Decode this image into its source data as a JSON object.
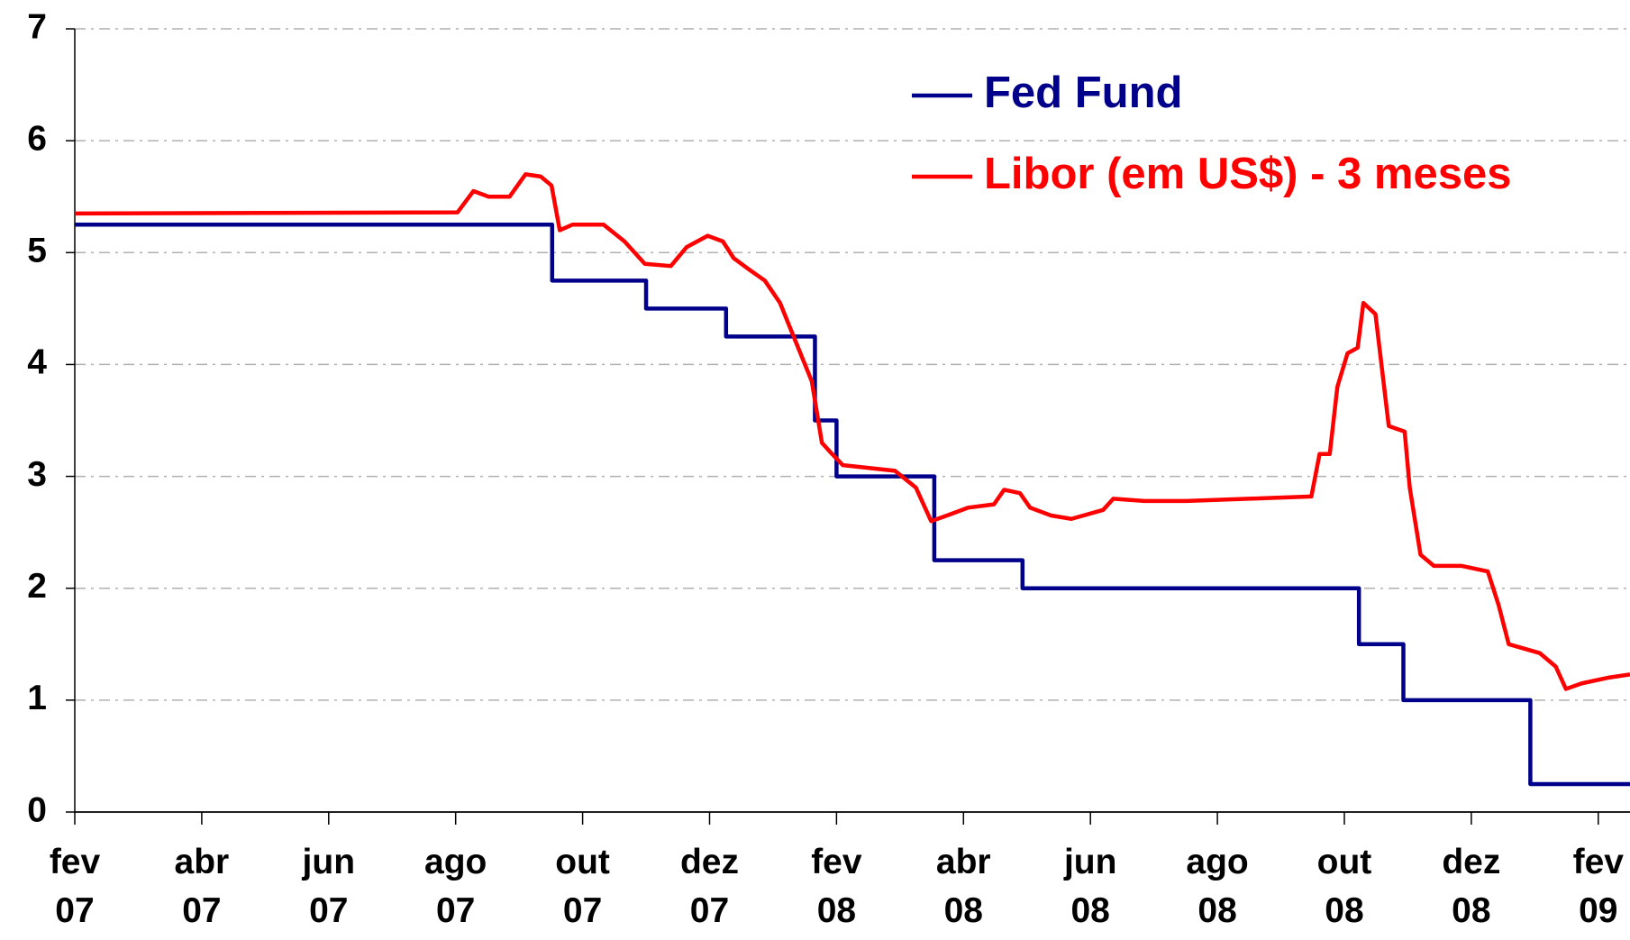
{
  "chart_data": {
    "type": "line",
    "xlim": [
      0,
      24.5
    ],
    "xticks": [
      {
        "value": 0,
        "label": "fev 07"
      },
      {
        "value": 2,
        "label": "abr 07"
      },
      {
        "value": 4,
        "label": "jun 07"
      },
      {
        "value": 6,
        "label": "ago 07"
      },
      {
        "value": 8,
        "label": "out 07"
      },
      {
        "value": 10,
        "label": "dez 07"
      },
      {
        "value": 12,
        "label": "fev 08"
      },
      {
        "value": 14,
        "label": "abr 08"
      },
      {
        "value": 16,
        "label": "jun 08"
      },
      {
        "value": 18,
        "label": "ago 08"
      },
      {
        "value": 20,
        "label": "out 08"
      },
      {
        "value": 22,
        "label": "dez 08"
      },
      {
        "value": 24,
        "label": "fev 09"
      }
    ],
    "ylim": [
      0,
      7
    ],
    "yticks": [
      0,
      1,
      2,
      3,
      4,
      5,
      6,
      7
    ],
    "grid": true,
    "legend": "upper right",
    "series": [
      {
        "name": "Fed Fund",
        "color": "#00008b",
        "x": [
          0,
          7.52,
          7.52,
          9.0,
          9.0,
          10.26,
          10.26,
          11.66,
          11.66,
          12.0,
          12.0,
          13.54,
          13.54,
          14.93,
          14.93,
          20.23,
          20.23,
          20.93,
          20.93,
          22.93,
          22.93,
          24.5
        ],
        "values": [
          5.25,
          5.25,
          4.75,
          4.75,
          4.5,
          4.5,
          4.25,
          4.25,
          3.5,
          3.5,
          3.0,
          3.0,
          2.25,
          2.25,
          2.0,
          2.0,
          1.5,
          1.5,
          1.0,
          1.0,
          0.25,
          0.25
        ]
      },
      {
        "name": "Libor (em US$) - 3 meses",
        "color": "#ff0000",
        "x": [
          0,
          6.03,
          6.28,
          6.52,
          6.85,
          7.1,
          7.34,
          7.51,
          7.64,
          7.84,
          8.33,
          8.66,
          8.98,
          9.39,
          9.64,
          9.97,
          10.21,
          10.38,
          10.62,
          10.87,
          11.11,
          11.36,
          11.61,
          11.77,
          11.93,
          12.1,
          12.43,
          12.92,
          13.25,
          13.49,
          13.74,
          14.07,
          14.48,
          14.64,
          14.89,
          15.05,
          15.38,
          15.7,
          16.2,
          16.36,
          16.85,
          17.51,
          18.49,
          19.48,
          19.61,
          19.77,
          19.89,
          20.05,
          20.21,
          20.3,
          20.49,
          20.7,
          20.95,
          21.03,
          21.2,
          21.41,
          21.61,
          21.85,
          22.26,
          22.43,
          22.59,
          23.08,
          23.33,
          23.49,
          23.74,
          24.15,
          24.5
        ],
        "values": [
          5.35,
          5.36,
          5.55,
          5.5,
          5.5,
          5.7,
          5.68,
          5.6,
          5.2,
          5.25,
          5.25,
          5.1,
          4.9,
          4.88,
          5.05,
          5.15,
          5.1,
          4.95,
          4.85,
          4.75,
          4.55,
          4.2,
          3.85,
          3.3,
          3.2,
          3.1,
          3.08,
          3.05,
          2.9,
          2.6,
          2.65,
          2.72,
          2.75,
          2.88,
          2.85,
          2.72,
          2.65,
          2.62,
          2.7,
          2.8,
          2.78,
          2.78,
          2.8,
          2.82,
          3.2,
          3.2,
          3.8,
          4.1,
          4.15,
          4.55,
          4.45,
          3.45,
          3.4,
          2.9,
          2.3,
          2.2,
          2.2,
          2.2,
          2.15,
          1.85,
          1.5,
          1.42,
          1.3,
          1.1,
          1.15,
          1.2,
          1.23
        ]
      }
    ]
  }
}
